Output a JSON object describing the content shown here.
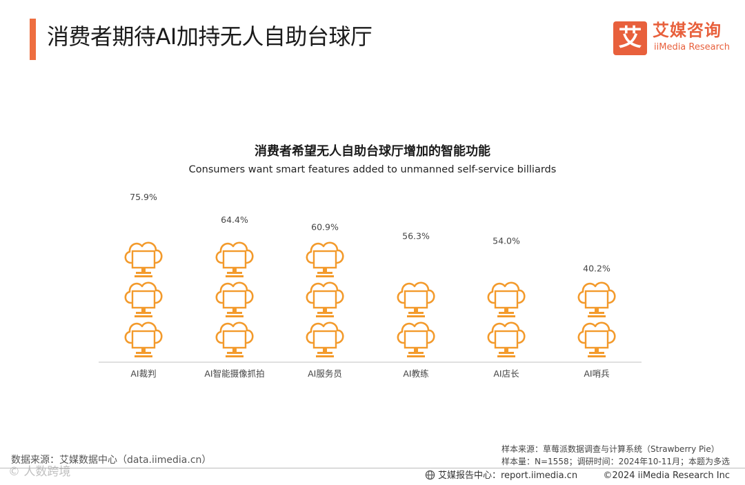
{
  "header": {
    "title": "消费者期待AI加持无人自助台球厅"
  },
  "logo": {
    "mark": "艾",
    "cn": "艾媒咨询",
    "en": "iiMedia Research"
  },
  "chart_data": {
    "type": "bar",
    "style": "pictograph",
    "icon": "cloud-monitor-icon",
    "title": "消费者希望无人自助台球厅增加的智能功能",
    "subtitle": "Consumers want smart features added to unmanned self-service billiards",
    "categories": [
      "AI裁判",
      "AI智能摄像抓拍",
      "AI服务员",
      "AI教练",
      "AI店长",
      "AI哨兵"
    ],
    "values": [
      75.9,
      64.4,
      60.9,
      56.3,
      54.0,
      40.2
    ],
    "value_labels": [
      "75.9%",
      "64.4%",
      "60.9%",
      "56.3%",
      "54.0%",
      "40.2%"
    ],
    "unit": "%",
    "ylim": [
      0,
      80
    ],
    "color": "#f39a2b"
  },
  "footer": {
    "source_left": "数据来源：艾媒数据中心（data.iimedia.cn）",
    "sample_source": "样本来源：草莓派数据调查与计算系统（Strawberry Pie）",
    "sample_info": "样本量：N=1558；调研时间：2024年10-11月；本题为多选",
    "report_center": "艾媒报告中心：report.iimedia.cn",
    "copyright": "©2024  iiMedia Research  Inc",
    "watermark": "© 人数跨境"
  },
  "colors": {
    "accent": "#ee6e40",
    "brand": "#e8603c",
    "icon": "#f39a2b"
  }
}
